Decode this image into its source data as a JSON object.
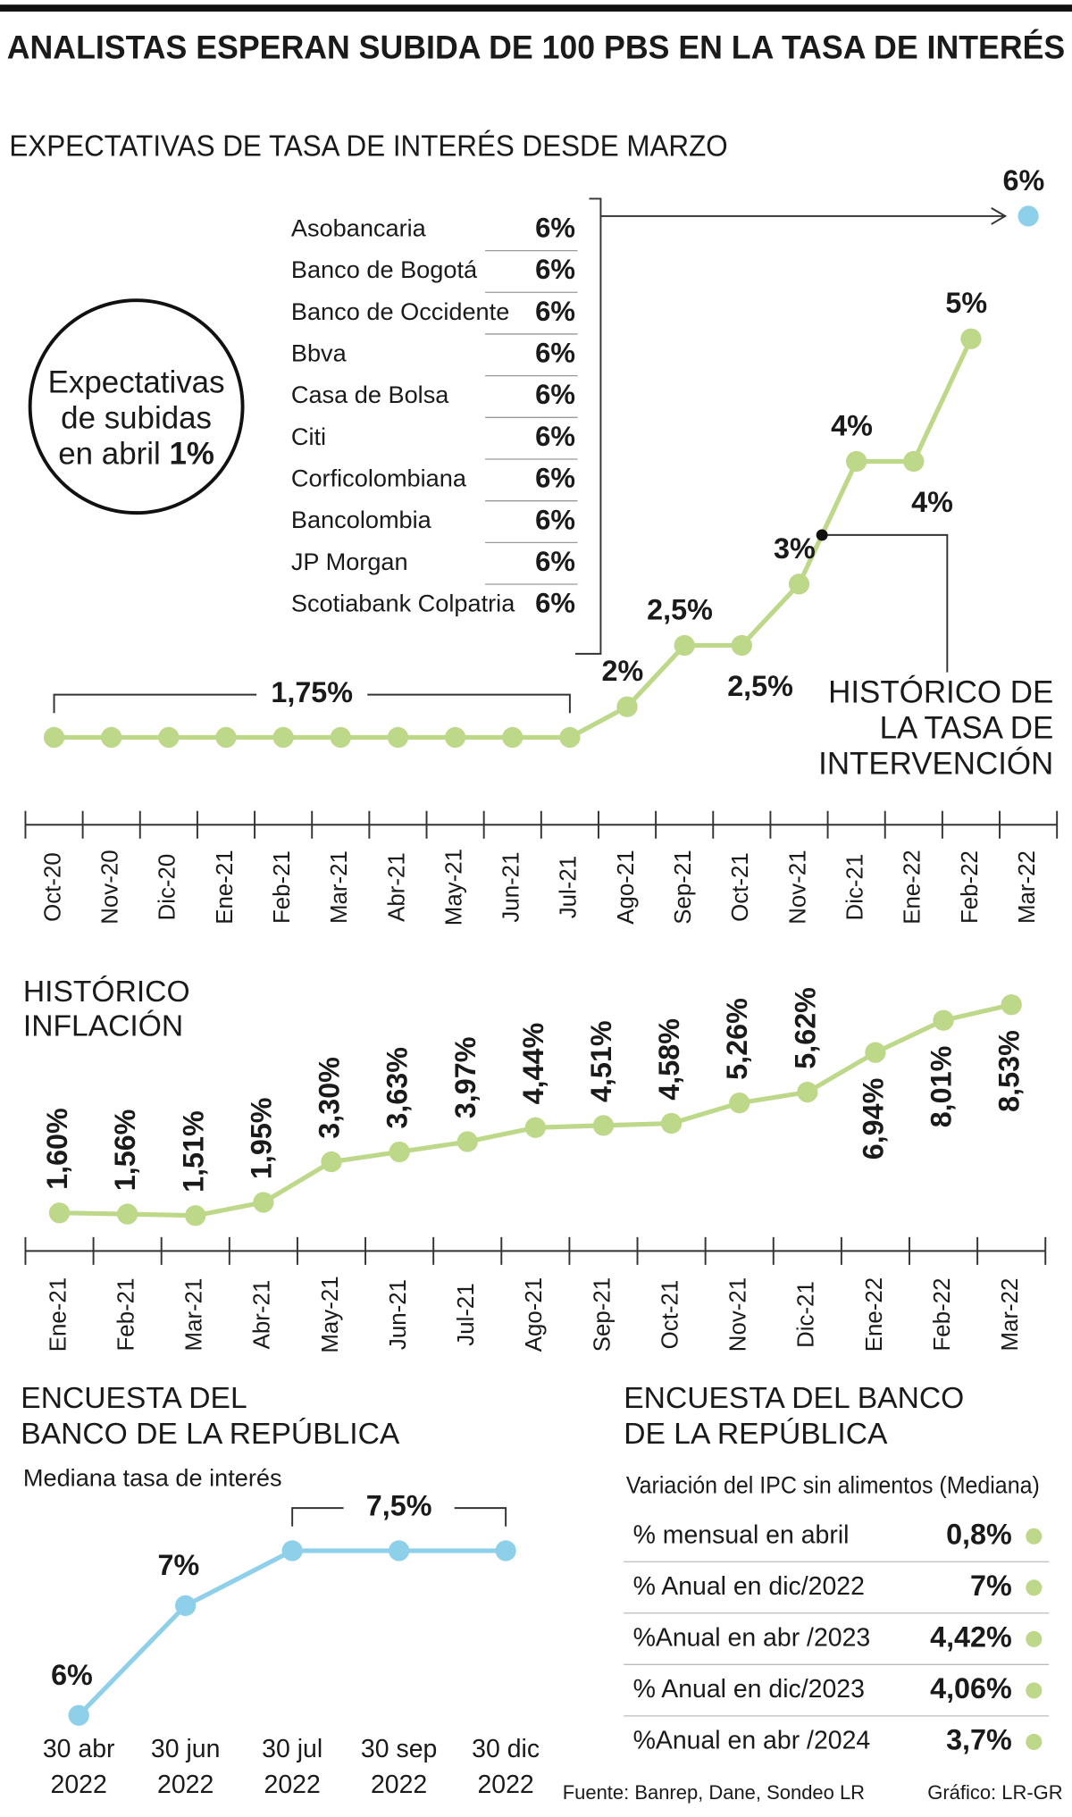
{
  "title": "ANALISTAS ESPERAN SUBIDA DE 100 PBS EN LA TASA DE INTERÉS",
  "source": "Fuente: Banrep, Dane, Sondeo LR",
  "credit": "Gráfico: LR-GR",
  "chart_data": [
    {
      "type": "line",
      "title": "EXPECTATIVAS DE TASA DE INTERÉS DESDE MARZO",
      "annotation": [
        "HISTÓRICO DE",
        "LA TASA DE",
        "INTERVENCIÓN"
      ],
      "categories": [
        "Oct-20",
        "Nov-20",
        "Dic-20",
        "Ene-21",
        "Feb-21",
        "Mar-21",
        "Abr-21",
        "May-21",
        "Jun-21",
        "Jul-21",
        "Ago-21",
        "Sep-21",
        "Oct-21",
        "Nov-21",
        "Dic-21",
        "Ene-22",
        "Feb-22",
        "Mar-22"
      ],
      "ylim": [
        1,
        6.5
      ],
      "series": [
        {
          "color": "#bdd889",
          "values": [
            1.75,
            1.75,
            1.75,
            1.75,
            1.75,
            1.75,
            1.75,
            1.75,
            1.75,
            1.75,
            2,
            2.5,
            2.5,
            3,
            4,
            4,
            5,
            null
          ],
          "value_labels": [
            "1,75%",
            null,
            null,
            null,
            null,
            null,
            null,
            null,
            null,
            null,
            "2%",
            "2,5%",
            "2,5%",
            "3%",
            "4%",
            "4%",
            "5%",
            null
          ]
        },
        {
          "color": "#8ed0ea",
          "values": [
            null,
            null,
            null,
            null,
            null,
            null,
            null,
            null,
            null,
            null,
            null,
            null,
            null,
            null,
            null,
            null,
            null,
            6
          ],
          "value_labels": [
            null,
            null,
            null,
            null,
            null,
            null,
            null,
            null,
            null,
            null,
            null,
            null,
            null,
            null,
            null,
            null,
            null,
            "6%"
          ]
        }
      ],
      "callout": {
        "lines": [
          "Expectativas",
          "de subidas",
          "en abril"
        ],
        "value": "1%"
      },
      "table": {
        "rows": [
          [
            "Asobancaria",
            "6%"
          ],
          [
            "Banco de Bogotá",
            "6%"
          ],
          [
            "Banco de Occidente",
            "6%"
          ],
          [
            "Bbva",
            "6%"
          ],
          [
            "Casa de Bolsa",
            "6%"
          ],
          [
            "Citi",
            "6%"
          ],
          [
            "Corficolombiana",
            "6%"
          ],
          [
            "Bancolombia",
            "6%"
          ],
          [
            "JP Morgan",
            "6%"
          ],
          [
            "Scotiabank Colpatria",
            "6%"
          ]
        ]
      }
    },
    {
      "type": "line",
      "title": [
        "HISTÓRICO",
        "INFLACIÓN"
      ],
      "categories": [
        "Ene-21",
        "Feb-21",
        "Mar-21",
        "Abr-21",
        "May-21",
        "Jun-21",
        "Jul-21",
        "Ago-21",
        "Sep-21",
        "Oct-21",
        "Nov-21",
        "Dic-21",
        "Ene-22",
        "Feb-22",
        "Mar-22"
      ],
      "ylim": [
        0,
        10
      ],
      "series": [
        {
          "color": "#bdd889",
          "values": [
            1.6,
            1.56,
            1.51,
            1.95,
            3.3,
            3.63,
            3.97,
            4.44,
            4.51,
            4.58,
            5.26,
            5.62,
            6.94,
            8.01,
            8.53
          ],
          "value_labels": [
            "1,60%",
            "1,56%",
            "1,51%",
            "1,95%",
            "3,30%",
            "3,63%",
            "3,97%",
            "4,44%",
            "4,51%",
            "4,58%",
            "5,26%",
            "5,62%",
            "6,94%",
            "8,01%",
            "8,53%"
          ]
        }
      ]
    },
    {
      "type": "line",
      "title": [
        "ENCUESTA DEL",
        "BANCO DE LA REPÚBLICA"
      ],
      "subtitle": "Mediana tasa de interés",
      "categories": [
        "30 abr 2022",
        "30 jun 2022",
        "30 jul 2022",
        "30 sep 2022",
        "30 dic 2022"
      ],
      "ylim": [
        5.5,
        8
      ],
      "series": [
        {
          "color": "#8ed0ea",
          "values": [
            6,
            7,
            7.5,
            7.5,
            7.5
          ],
          "value_labels": [
            "6%",
            "7%",
            "7,5%",
            null,
            null
          ]
        }
      ]
    },
    {
      "type": "table",
      "title": [
        "ENCUESTA DEL BANCO",
        "DE LA REPÚBLICA"
      ],
      "subtitle": "Variación del IPC sin alimentos (Mediana)",
      "color": "#bdd889",
      "rows": [
        [
          "% mensual en abril",
          "0,8%"
        ],
        [
          "% Anual en dic/2022",
          "7%"
        ],
        [
          "%Anual en abr /2023",
          "4,42%"
        ],
        [
          "% Anual en dic/2023",
          "4,06%"
        ],
        [
          "%Anual en abr /2024",
          "3,7%"
        ]
      ]
    }
  ]
}
